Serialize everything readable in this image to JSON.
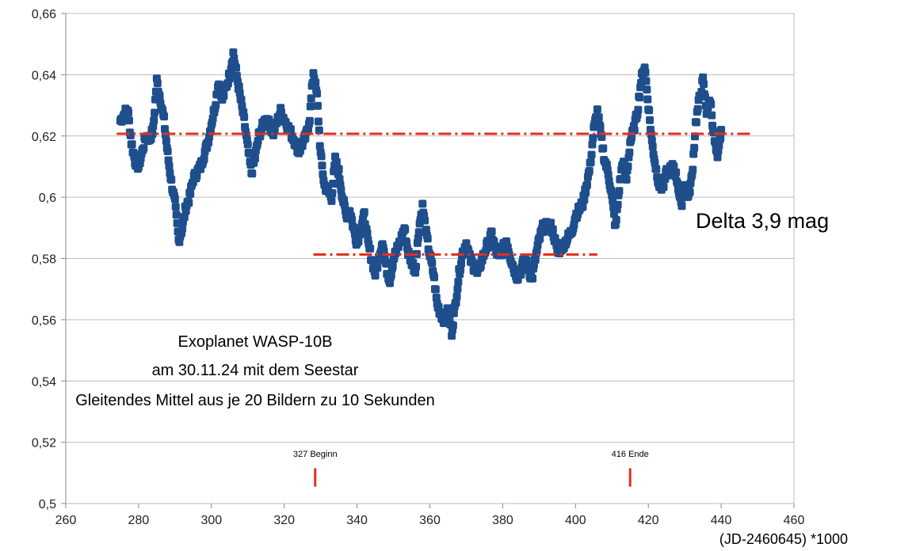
{
  "chart_data": {
    "type": "scatter",
    "title": "",
    "xlabel": "(JD-2460645) *1000",
    "ylabel": "",
    "xlim": [
      260,
      460
    ],
    "ylim": [
      0.5,
      0.66
    ],
    "x_ticks": [
      260,
      280,
      300,
      320,
      340,
      360,
      380,
      400,
      420,
      440,
      460
    ],
    "y_ticks": [
      {
        "v": 0.5,
        "label": "0,5"
      },
      {
        "v": 0.52,
        "label": "0,52"
      },
      {
        "v": 0.54,
        "label": "0,54"
      },
      {
        "v": 0.56,
        "label": "0,56"
      },
      {
        "v": 0.58,
        "label": "0,58"
      },
      {
        "v": 0.6,
        "label": "0,6"
      },
      {
        "v": 0.62,
        "label": "0,62"
      },
      {
        "v": 0.64,
        "label": "0,64"
      },
      {
        "v": 0.66,
        "label": "0,66"
      }
    ],
    "grid": "horizontal",
    "marker_color": "#1f4e8c",
    "key_points": [
      [
        275,
        0.625
      ],
      [
        277,
        0.629
      ],
      [
        278,
        0.618
      ],
      [
        279,
        0.612
      ],
      [
        280,
        0.61
      ],
      [
        281,
        0.615
      ],
      [
        282,
        0.62
      ],
      [
        283,
        0.619
      ],
      [
        284,
        0.622
      ],
      [
        285,
        0.638
      ],
      [
        286,
        0.632
      ],
      [
        287,
        0.625
      ],
      [
        288,
        0.614
      ],
      [
        289,
        0.605
      ],
      [
        290,
        0.598
      ],
      [
        291,
        0.586
      ],
      [
        292,
        0.59
      ],
      [
        293,
        0.597
      ],
      [
        294,
        0.6
      ],
      [
        295,
        0.606
      ],
      [
        297,
        0.61
      ],
      [
        299,
        0.618
      ],
      [
        301,
        0.63
      ],
      [
        302,
        0.638
      ],
      [
        303,
        0.632
      ],
      [
        305,
        0.64
      ],
      [
        306,
        0.647
      ],
      [
        308,
        0.632
      ],
      [
        309,
        0.625
      ],
      [
        310,
        0.616
      ],
      [
        311,
        0.608
      ],
      [
        312,
        0.613
      ],
      [
        313,
        0.62
      ],
      [
        315,
        0.626
      ],
      [
        317,
        0.621
      ],
      [
        319,
        0.628
      ],
      [
        321,
        0.623
      ],
      [
        323,
        0.618
      ],
      [
        324,
        0.615
      ],
      [
        326,
        0.62
      ],
      [
        327,
        0.626
      ],
      [
        328,
        0.641
      ],
      [
        329,
        0.633
      ],
      [
        330,
        0.614
      ],
      [
        331,
        0.604
      ],
      [
        332,
        0.602
      ],
      [
        333,
        0.6
      ],
      [
        334,
        0.612
      ],
      [
        335,
        0.608
      ],
      [
        336,
        0.6
      ],
      [
        337,
        0.594
      ],
      [
        338,
        0.596
      ],
      [
        339,
        0.59
      ],
      [
        340,
        0.585
      ],
      [
        341,
        0.59
      ],
      [
        342,
        0.594
      ],
      [
        343,
        0.585
      ],
      [
        344,
        0.58
      ],
      [
        345,
        0.575
      ],
      [
        346,
        0.58
      ],
      [
        347,
        0.586
      ],
      [
        348,
        0.577
      ],
      [
        349,
        0.573
      ],
      [
        350,
        0.58
      ],
      [
        352,
        0.586
      ],
      [
        353,
        0.59
      ],
      [
        354,
        0.582
      ],
      [
        356,
        0.576
      ],
      [
        357,
        0.59
      ],
      [
        358,
        0.597
      ],
      [
        359,
        0.588
      ],
      [
        360,
        0.581
      ],
      [
        361,
        0.575
      ],
      [
        362,
        0.565
      ],
      [
        363,
        0.562
      ],
      [
        364,
        0.56
      ],
      [
        365,
        0.563
      ],
      [
        366,
        0.556
      ],
      [
        367,
        0.565
      ],
      [
        368,
        0.575
      ],
      [
        369,
        0.582
      ],
      [
        370,
        0.585
      ],
      [
        371,
        0.58
      ],
      [
        373,
        0.575
      ],
      [
        375,
        0.582
      ],
      [
        377,
        0.588
      ],
      [
        378,
        0.583
      ],
      [
        379,
        0.58
      ],
      [
        381,
        0.586
      ],
      [
        382,
        0.581
      ],
      [
        383,
        0.577
      ],
      [
        384,
        0.574
      ],
      [
        385,
        0.576
      ],
      [
        386,
        0.58
      ],
      [
        387,
        0.577
      ],
      [
        388,
        0.573
      ],
      [
        389,
        0.58
      ],
      [
        390,
        0.586
      ],
      [
        391,
        0.59
      ],
      [
        393,
        0.591
      ],
      [
        394,
        0.588
      ],
      [
        395,
        0.582
      ],
      [
        397,
        0.585
      ],
      [
        399,
        0.589
      ],
      [
        400,
        0.594
      ],
      [
        402,
        0.598
      ],
      [
        404,
        0.61
      ],
      [
        405,
        0.622
      ],
      [
        406,
        0.628
      ],
      [
        407,
        0.62
      ],
      [
        408,
        0.612
      ],
      [
        409,
        0.608
      ],
      [
        410,
        0.6
      ],
      [
        411,
        0.59
      ],
      [
        412,
        0.603
      ],
      [
        413,
        0.612
      ],
      [
        414,
        0.606
      ],
      [
        415,
        0.618
      ],
      [
        416,
        0.622
      ],
      [
        417,
        0.628
      ],
      [
        418,
        0.638
      ],
      [
        419,
        0.643
      ],
      [
        420,
        0.63
      ],
      [
        421,
        0.618
      ],
      [
        422,
        0.61
      ],
      [
        423,
        0.604
      ],
      [
        424,
        0.603
      ],
      [
        425,
        0.608
      ],
      [
        427,
        0.61
      ],
      [
        428,
        0.605
      ],
      [
        429,
        0.597
      ],
      [
        430,
        0.605
      ],
      [
        431,
        0.6
      ],
      [
        432,
        0.607
      ],
      [
        433,
        0.624
      ],
      [
        434,
        0.632
      ],
      [
        435,
        0.638
      ],
      [
        436,
        0.628
      ],
      [
        437,
        0.632
      ],
      [
        438,
        0.62
      ],
      [
        439,
        0.612
      ],
      [
        440,
        0.622
      ]
    ],
    "reference_lines": [
      {
        "from": 274,
        "to": 448,
        "y": 0.6207
      },
      {
        "from": 328,
        "to": 406,
        "y": 0.5813
      }
    ],
    "markers": [
      {
        "x": 328.5,
        "label": "327 Beginn"
      },
      {
        "x": 415,
        "label": "416 Ende"
      }
    ]
  },
  "annotations": {
    "line1": "Exoplanet WASP-10B",
    "line2": "am 30.11.24 mit dem Seestar",
    "line3": "Gleitendes Mittel aus je 20 Bildern zu 10 Sekunden",
    "delta": "Delta 3,9 mag"
  }
}
